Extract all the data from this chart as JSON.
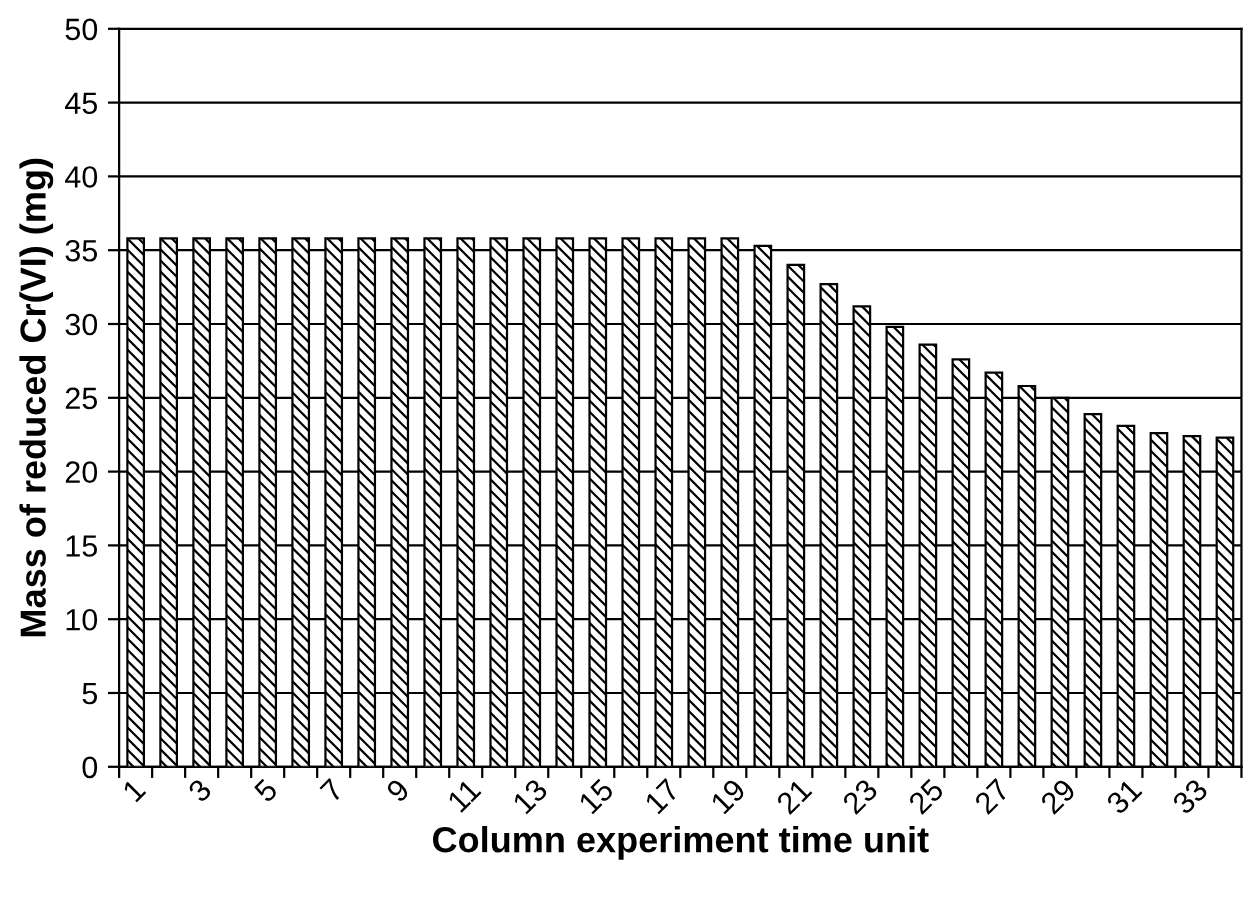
{
  "chart_data": {
    "type": "bar",
    "xlabel": "Column experiment time unit",
    "ylabel": "Mass of reduced Cr(VI) (mg)",
    "categories": [
      "1",
      null,
      "3",
      null,
      "5",
      null,
      "7",
      null,
      "9",
      null,
      "11",
      null,
      "13",
      null,
      "15",
      null,
      "17",
      null,
      "19",
      null,
      "21",
      null,
      "23",
      null,
      "25",
      null,
      "27",
      null,
      "29",
      null,
      "31",
      null,
      "33",
      null
    ],
    "values": [
      35.8,
      35.8,
      35.8,
      35.8,
      35.8,
      35.8,
      35.8,
      35.8,
      35.8,
      35.8,
      35.8,
      35.8,
      35.8,
      35.8,
      35.8,
      35.8,
      35.8,
      35.8,
      35.8,
      35.3,
      34.0,
      32.7,
      31.2,
      29.8,
      28.6,
      27.6,
      26.7,
      25.8,
      25.0,
      23.9,
      23.1,
      22.6,
      22.4,
      22.3
    ],
    "color": "#000000",
    "ylim": [
      0,
      50
    ],
    "yticks": [
      0,
      5,
      10,
      15,
      20,
      25,
      30,
      35,
      40,
      45,
      50
    ],
    "grid": "y",
    "legend": false
  }
}
